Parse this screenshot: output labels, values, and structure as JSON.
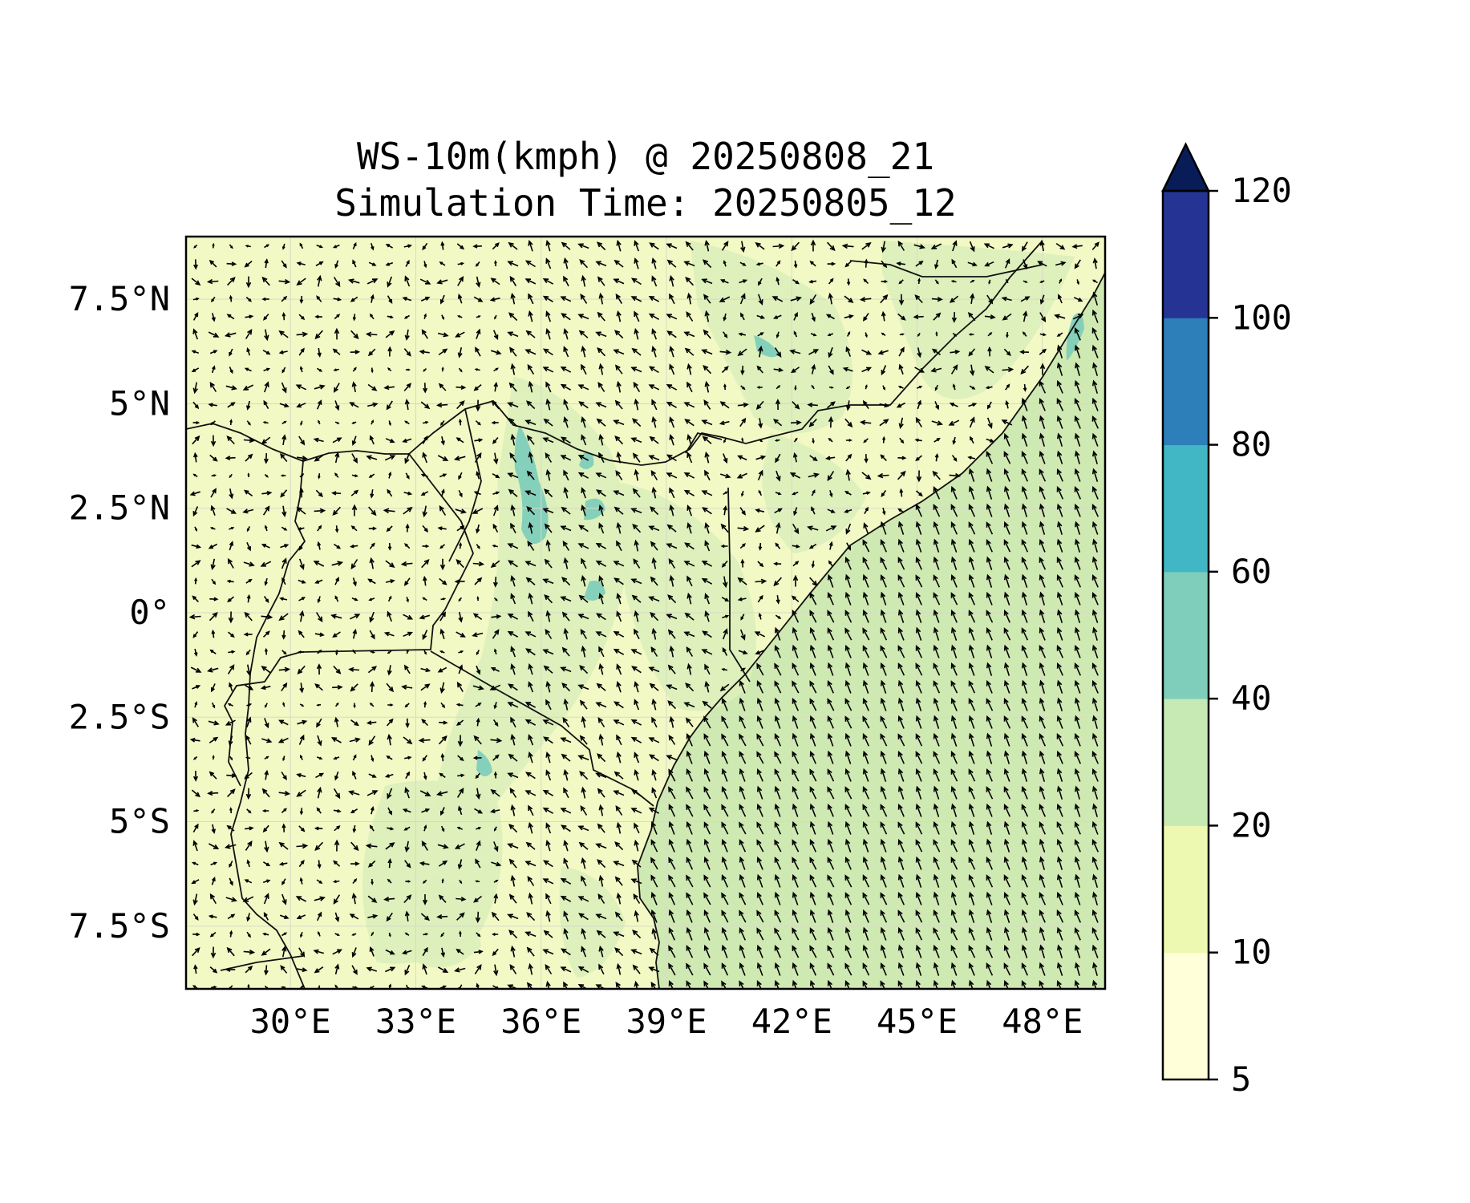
{
  "title": {
    "line1": "WS-10m(kmph) @ 20250808_21",
    "line2": "Simulation Time: 20250805_12"
  },
  "map": {
    "lon_range": [
      27.5,
      49.5
    ],
    "lat_range": [
      -9,
      9
    ],
    "lon_ticks": [
      "30°E",
      "33°E",
      "36°E",
      "39°E",
      "42°E",
      "45°E",
      "48°E"
    ],
    "lon_tick_values": [
      30,
      33,
      36,
      39,
      42,
      45,
      48
    ],
    "lat_ticks": [
      "7.5°N",
      "5°N",
      "2.5°N",
      "0°",
      "2.5°S",
      "5°S",
      "7.5°S"
    ],
    "lat_tick_values": [
      7.5,
      5,
      2.5,
      0,
      -2.5,
      -5,
      -7.5
    ],
    "gridlines": true,
    "land_color": "#f2f9c4",
    "ocean_color": "#cfe9b2",
    "vector_field": "10 m wind vectors; land winds light and variable, strong south-southeasterly flow over the Indian Ocean"
  },
  "colorbar": {
    "levels": [
      "5",
      "10",
      "20",
      "40",
      "60",
      "80",
      "100",
      "120"
    ],
    "colors": [
      "#ffffd9",
      "#edf8b1",
      "#c7e9b4",
      "#7fcdbb",
      "#41b6c4",
      "#2c7fb8",
      "#253494",
      "#081d58"
    ],
    "extend": "max"
  }
}
